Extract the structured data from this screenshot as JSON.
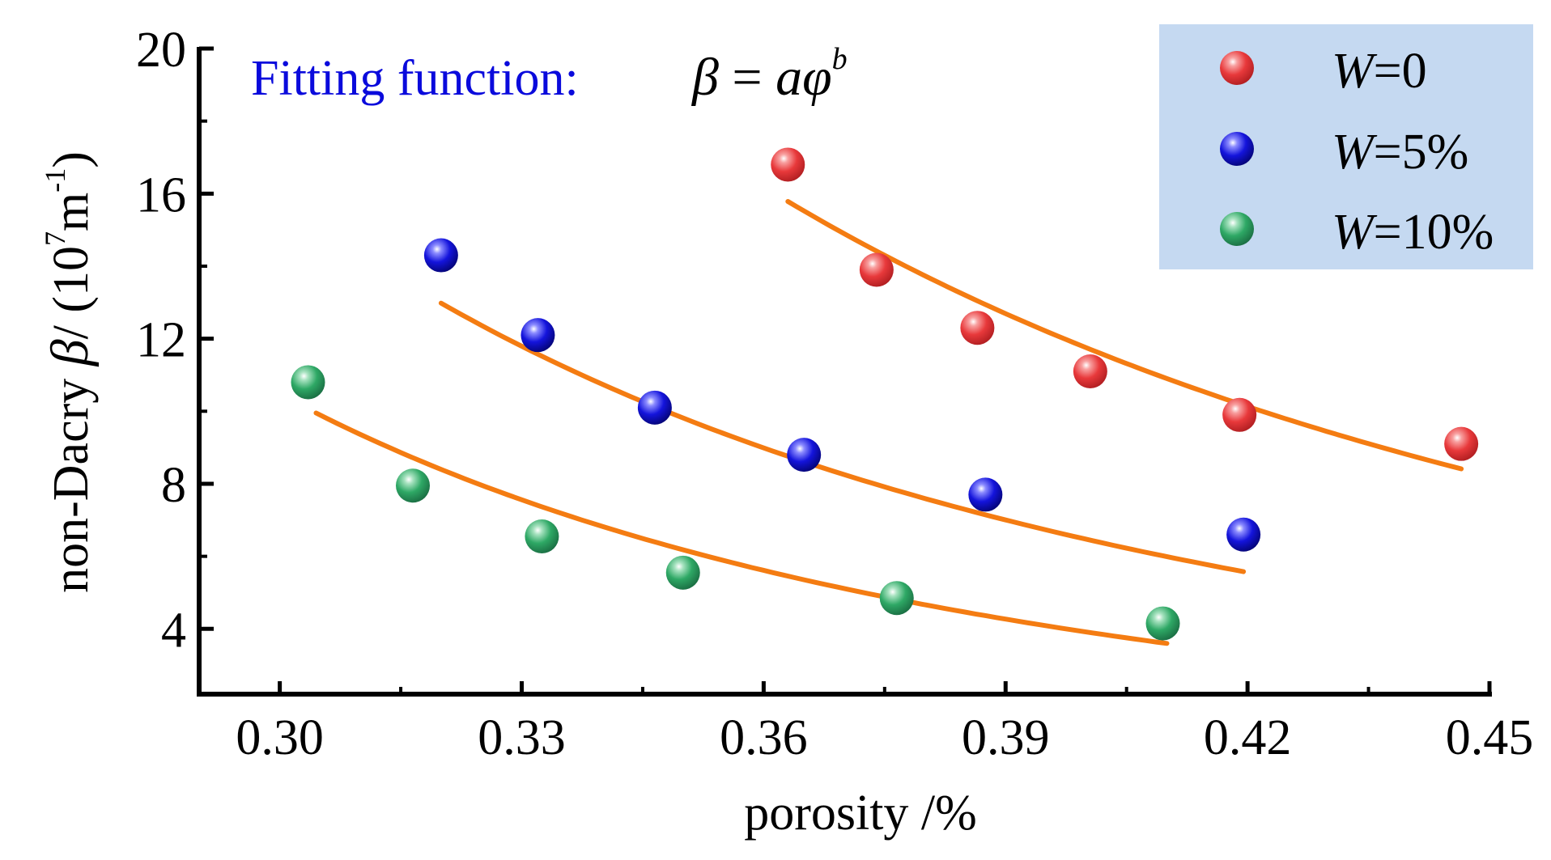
{
  "chart_data": {
    "type": "scatter",
    "title": "",
    "xlabel": "porosity /%",
    "ylabel": {
      "prefix": "non-Dacry ",
      "symbol": "β",
      "mid": "/ (10",
      "exp1": "7",
      "unit": "m",
      "exp2": "-1",
      "suffix": ")"
    },
    "xlim": [
      0.29,
      0.45
    ],
    "ylim": [
      2.2,
      20
    ],
    "xticks": [
      0.3,
      0.33,
      0.36,
      0.39,
      0.42,
      0.45
    ],
    "xtick_labels": [
      "0.30",
      "0.33",
      "0.36",
      "0.39",
      "0.42",
      "0.45"
    ],
    "yticks": [
      4,
      8,
      12,
      16,
      20
    ],
    "ytick_labels": [
      "4",
      "8",
      "12",
      "16",
      "20"
    ],
    "grid": false,
    "legend_position": "top-right",
    "annotation": {
      "label": "Fitting function:",
      "beta": "β",
      "eq": " = ",
      "a": "a",
      "phi": "φ",
      "b": "b"
    },
    "series": [
      {
        "name": "W=0",
        "legend_var": "W",
        "legend_val": "=0",
        "color": "#e8393b",
        "points": [
          [
            0.363,
            16.8
          ],
          [
            0.374,
            13.9
          ],
          [
            0.3865,
            12.3
          ],
          [
            0.4005,
            11.1
          ],
          [
            0.419,
            9.9
          ],
          [
            0.4465,
            9.1
          ]
        ],
        "fit": {
          "a": 0.725,
          "b": -3.04,
          "x_range": [
            0.363,
            0.4465
          ]
        }
      },
      {
        "name": "W=5%",
        "legend_var": "W",
        "legend_val": "=5%",
        "color": "#1414dc",
        "points": [
          [
            0.32,
            14.3
          ],
          [
            0.332,
            12.1
          ],
          [
            0.3465,
            10.1
          ],
          [
            0.365,
            8.8
          ],
          [
            0.3875,
            7.7
          ],
          [
            0.4195,
            6.6
          ]
        ],
        "fit": {
          "a": 0.371,
          "b": -3.12,
          "x_range": [
            0.32,
            0.4195
          ]
        }
      },
      {
        "name": "W=10%",
        "legend_var": "W",
        "legend_val": "=10%",
        "color": "#2ea865",
        "points": [
          [
            0.3035,
            10.8
          ],
          [
            0.3165,
            7.95
          ],
          [
            0.3325,
            6.55
          ],
          [
            0.35,
            5.55
          ],
          [
            0.3765,
            4.85
          ],
          [
            0.4095,
            4.15
          ]
        ],
        "fit": {
          "a": 0.1705,
          "b": -3.42,
          "x_range": [
            0.3045,
            0.41
          ]
        }
      }
    ],
    "fit_color": "#f47c12",
    "legend_bg": "#c5d9f1",
    "annotation_color": "#0a0adc"
  }
}
